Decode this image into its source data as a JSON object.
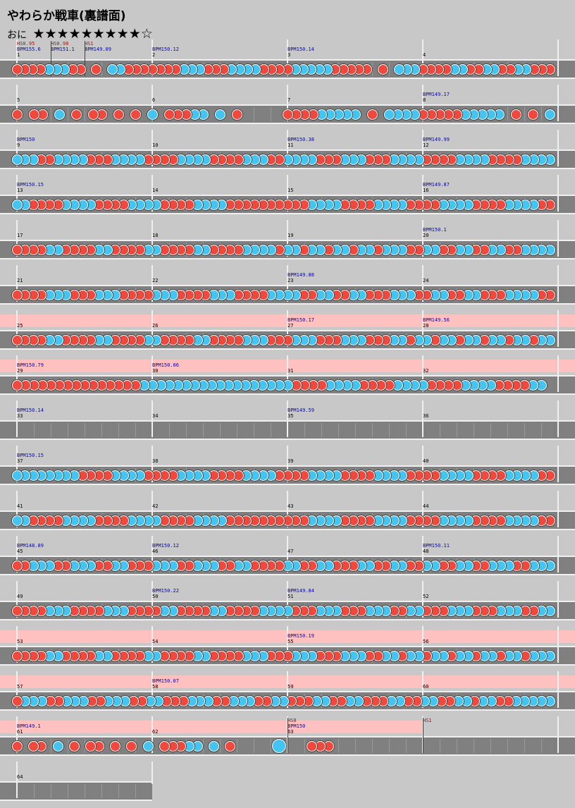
{
  "title": "やわらか戦車(裏譜面)",
  "difficulty": {
    "label": "おに",
    "stars": "★★★★★★★★★☆"
  },
  "colors": {
    "don": "#f0483c",
    "ka": "#44c4f0",
    "lane": "#808080",
    "gogo": "#ffc0c0"
  },
  "rows": [
    {
      "gogo": false,
      "bars": 4,
      "measures": [
        "1",
        "2",
        "3",
        "4"
      ],
      "bpm": [
        {
          "m": 0,
          "t": "BPM155.6"
        },
        {
          "m": 0.25,
          "t": "BPM151.1"
        },
        {
          "m": 0.5,
          "t": "BPM149.09"
        },
        {
          "m": 1,
          "t": "BPM150.12"
        },
        {
          "m": 2,
          "t": "BPM150.14"
        }
      ],
      "hs": [
        {
          "m": 0,
          "t": "HS0.95"
        },
        {
          "m": 0.25,
          "t": "HS0.98"
        },
        {
          "m": 0.5,
          "t": "HS1"
        }
      ],
      "notes": "ddddkkkdd-d-kkdddddddkkkdddkkkkddddkkkkkddddd-d-kkkddddkkddkkddkkddd"
    },
    {
      "gogo": false,
      "bars": 4,
      "measures": [
        "5",
        "6",
        "7",
        "8"
      ],
      "bpm": [
        {
          "m": 3,
          "t": "BPM149.17"
        }
      ],
      "hs": [],
      "notes": "d-dd-k-d-dd-d-d-k-dddkk-k-d-----ddddkkkkk-d-kkkkdddddkkkkk-d-d-k"
    },
    {
      "gogo": false,
      "bars": 4,
      "measures": [
        "9",
        "10",
        "11",
        "12"
      ],
      "bpm": [
        {
          "m": 0,
          "t": "BPM150"
        },
        {
          "m": 2,
          "t": "BPM150.38"
        },
        {
          "m": 3,
          "t": "BPM149.99"
        }
      ],
      "hs": [],
      "notes": "kkkddkkkkdddkkkkddddkkkkddddkkkddkkkkdddkkkdddkkkkddddkkkkddddkkkk"
    },
    {
      "gogo": false,
      "bars": 4,
      "measures": [
        "13",
        "14",
        "15",
        "16"
      ],
      "bpm": [
        {
          "m": 0,
          "t": "BPM150.15"
        },
        {
          "m": 3,
          "t": "BPM149.87"
        }
      ],
      "hs": [],
      "notes": "kkddddkkkkddddkkkkddddkkkkddddddddddkkkkddddkkkkddddkkkkddddkkkkdd"
    },
    {
      "gogo": false,
      "bars": 4,
      "measures": [
        "17",
        "18",
        "19",
        "20"
      ],
      "bpm": [
        {
          "m": 3,
          "t": "BPM150.1"
        }
      ],
      "hs": [],
      "notes": "ddddkkddddkkddddkkddddkkddddkkkkdkkdkkdkkdkkdkkkddkkddkkddkkddkkkk"
    },
    {
      "gogo": false,
      "bars": 4,
      "measures": [
        "21",
        "22",
        "23",
        "24"
      ],
      "bpm": [
        {
          "m": 2,
          "t": "BPM149.88"
        }
      ],
      "hs": [],
      "notes": "ddddkkkdddkkkddddkkkddddkkkddddkkkkddkkddkkdddkkkddkkddkkdddkkkkdd"
    },
    {
      "gogo": true,
      "bars": 4,
      "measures": [
        "25",
        "26",
        "27",
        "28"
      ],
      "bpm": [
        {
          "m": 2,
          "t": "BPM150.17"
        },
        {
          "m": 3,
          "t": "BPM149.56"
        }
      ],
      "hs": [],
      "notes": "ddddkkddddkkddddkkddddkkddddkkkdddkkkdddkkkdddkkdkkdkkdkkdkkdkkdkk"
    },
    {
      "gogo": true,
      "bars": 4,
      "measures": [
        "29",
        "30",
        "31",
        "32"
      ],
      "bpm": [
        {
          "m": 0,
          "t": "BPM150.79"
        },
        {
          "m": 1,
          "t": "BPM150.06"
        }
      ],
      "hs": [],
      "notes": "dddddddddddddddkkkkkkkkkkkkkkkkkkddddkkkkddddkkkkddddkkkkddddkk-"
    },
    {
      "gogo": false,
      "bars": 4,
      "measures": [
        "33",
        "34",
        "35",
        "36"
      ],
      "bpm": [
        {
          "m": 0,
          "t": "BPM150.14"
        },
        {
          "m": 2,
          "t": "BPM149.59"
        }
      ],
      "hs": [],
      "notes": ""
    },
    {
      "gogo": false,
      "bars": 4,
      "measures": [
        "37",
        "38",
        "39",
        "40"
      ],
      "bpm": [
        {
          "m": 0,
          "t": "BPM150.15"
        }
      ],
      "hs": [],
      "notes": "kkkkkkkkddddkkkkddddkkkkddddkkkkddddkkkkddddkkkkddddkkkkddddkkkkdd"
    },
    {
      "gogo": false,
      "bars": 4,
      "measures": [
        "41",
        "42",
        "43",
        "44"
      ],
      "bpm": [],
      "hs": [],
      "notes": "kkddddkkkkddddkkkkddddkkkkddddddddddkkkkddddkkkkddddkkkkddddkkkkdd"
    },
    {
      "gogo": false,
      "bars": 4,
      "measures": [
        "45",
        "46",
        "47",
        "48"
      ],
      "bpm": [
        {
          "m": 0,
          "t": "BPM148.89"
        },
        {
          "m": 1,
          "t": "BPM150.12"
        },
        {
          "m": 3,
          "t": "BPM150.11"
        }
      ],
      "hs": [],
      "notes": "ddkkkddkkkddkkdddkkkddkkkddkkddddkkddkkdddkkddkkddkkddkkddkkkddkkk"
    },
    {
      "gogo": false,
      "bars": 4,
      "measures": [
        "49",
        "50",
        "51",
        "52"
      ],
      "bpm": [
        {
          "m": 1,
          "t": "BPM150.22"
        },
        {
          "m": 2,
          "t": "BPM149.84"
        }
      ],
      "hs": [],
      "notes": "ddddkkkddddkkkddddkkddddkkddddkkkkdddkkkdddkkkddkkdddkkkdddkkkddkk"
    },
    {
      "gogo": true,
      "bars": 4,
      "measures": [
        "53",
        "54",
        "55",
        "56"
      ],
      "bpm": [
        {
          "m": 2,
          "t": "BPM150.19"
        }
      ],
      "hs": [],
      "notes": "ddddkkddddkkddddkkddddkkddddkkkdddkkkdddkkkddkkdkkdkkdkkdkkdkkdkkk"
    },
    {
      "gogo": true,
      "bars": 4,
      "measures": [
        "57",
        "58",
        "59",
        "60"
      ],
      "bpm": [
        {
          "m": 1,
          "t": "BPM150.07"
        }
      ],
      "hs": [],
      "notes": "dkkkddkkkddkkkddkkdddkkkddkkkddkkdddkkddkkdddkkddkkddkkdkkddkkkkk"
    },
    {
      "gogo": true,
      "gogoBars": 3,
      "bars": 4,
      "measures": [
        "61",
        "62",
        "63",
        ""
      ],
      "bpm": [
        {
          "m": 0,
          "t": "BPM149.1"
        },
        {
          "m": 2,
          "t": "BPM150"
        }
      ],
      "hs": [
        {
          "m": 2,
          "t": "HS8"
        },
        {
          "m": 3,
          "t": "HS1"
        }
      ],
      "notes": "d-dd-k-d-dd-d-d-k-dddkk-k-d-----B---ddd---------------------------"
    },
    {
      "gogo": false,
      "bars": 1,
      "measures": [
        "64"
      ],
      "bpm": [],
      "hs": [],
      "notes": ""
    }
  ]
}
